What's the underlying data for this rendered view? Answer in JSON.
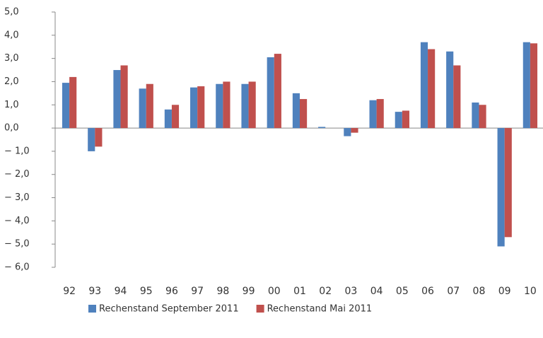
{
  "chart_data": {
    "type": "bar",
    "categories": [
      "92",
      "93",
      "94",
      "95",
      "96",
      "97",
      "98",
      "99",
      "00",
      "01",
      "02",
      "03",
      "04",
      "05",
      "06",
      "07",
      "08",
      "09",
      "10"
    ],
    "series": [
      {
        "name": "Rechenstand September 2011",
        "color": "#4f81bd",
        "values": [
          1.95,
          -1.0,
          2.5,
          1.7,
          0.8,
          1.75,
          1.9,
          1.9,
          3.05,
          1.5,
          0.05,
          -0.35,
          1.2,
          0.7,
          3.7,
          3.3,
          1.1,
          -5.1,
          3.7
        ]
      },
      {
        "name": "Rechenstand Mai 2011",
        "color": "#c0504d",
        "values": [
          2.2,
          -0.8,
          2.7,
          1.9,
          1.0,
          1.8,
          2.0,
          2.0,
          3.2,
          1.25,
          0.0,
          -0.2,
          1.25,
          0.75,
          3.4,
          2.7,
          1.0,
          -4.7,
          3.65
        ]
      }
    ],
    "ylim": [
      -6,
      5
    ],
    "yticks": [
      {
        "value": 5,
        "label": "5,0"
      },
      {
        "value": 4,
        "label": "4,0"
      },
      {
        "value": 3,
        "label": "3,0"
      },
      {
        "value": 2,
        "label": "2,0"
      },
      {
        "value": 1,
        "label": "1,0"
      },
      {
        "value": 0,
        "label": "0,0"
      },
      {
        "value": -1,
        "label": "− 1,0"
      },
      {
        "value": -2,
        "label": "− 2,0"
      },
      {
        "value": -3,
        "label": "− 3,0"
      },
      {
        "value": -4,
        "label": "− 4,0"
      },
      {
        "value": -5,
        "label": "− 5,0"
      },
      {
        "value": -6,
        "label": "− 6,0"
      }
    ],
    "grid": false,
    "legend": "bottom"
  }
}
